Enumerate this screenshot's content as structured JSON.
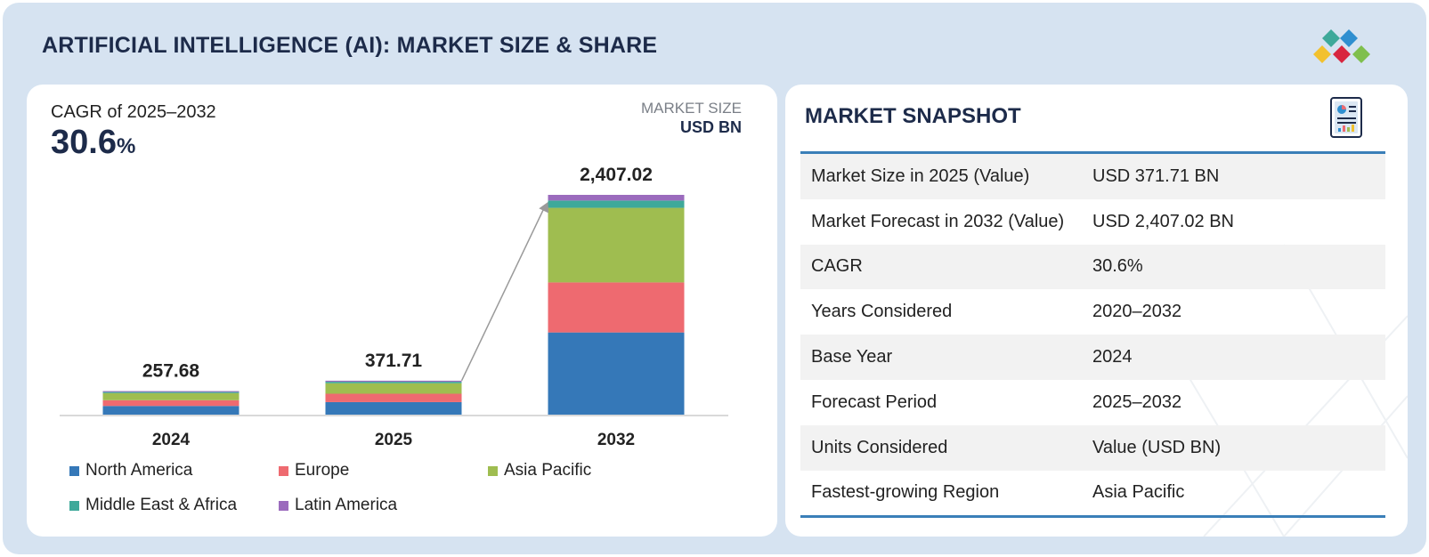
{
  "header": {
    "title": "ARTIFICIAL INTELLIGENCE (AI): MARKET SIZE & SHARE"
  },
  "chart_panel": {
    "cagr_label": "CAGR of 2025–2032",
    "cagr_value": "30.6",
    "cagr_unit": "%",
    "market_size_label": "MARKET SIZE",
    "market_size_unit": "USD BN"
  },
  "chart_data": {
    "type": "bar",
    "stacked": true,
    "categories": [
      "2024",
      "2025",
      "2032"
    ],
    "totals": [
      257.68,
      371.71,
      2407.02
    ],
    "total_labels": [
      "257.68",
      "371.71",
      "2,407.02"
    ],
    "series": [
      {
        "name": "North America",
        "color": "#3578b8",
        "values": [
          95,
          137,
          900
        ]
      },
      {
        "name": "Europe",
        "color": "#ee6a70",
        "values": [
          63,
          92,
          548
        ]
      },
      {
        "name": "Asia Pacific",
        "color": "#9fbd50",
        "values": [
          78,
          115,
          817
        ]
      },
      {
        "name": "Middle East & Africa",
        "color": "#3ea99a",
        "values": [
          12,
          16,
          80
        ]
      },
      {
        "name": "Latin America",
        "color": "#9b6bbd",
        "values": [
          9.68,
          11.71,
          62.02
        ]
      }
    ],
    "title": "",
    "xlabel": "",
    "ylabel": "",
    "ylim": [
      0,
      2407.02
    ],
    "grid": false,
    "legend_position": "bottom",
    "growth_arrow": {
      "from": "2025",
      "to": "2032"
    }
  },
  "snapshot": {
    "title": "MARKET SNAPSHOT",
    "rows": [
      {
        "key": "Market Size in 2025 (Value)",
        "value": "USD 371.71 BN"
      },
      {
        "key": "Market Forecast in 2032 (Value)",
        "value": "USD 2,407.02 BN"
      },
      {
        "key": "CAGR",
        "value": "30.6%"
      },
      {
        "key": "Years Considered",
        "value": "2020–2032"
      },
      {
        "key": "Base Year",
        "value": "2024"
      },
      {
        "key": "Forecast Period",
        "value": "2025–2032"
      },
      {
        "key": "Units Considered",
        "value": "Value (USD BN)"
      },
      {
        "key": "Fastest-growing Region",
        "value": "Asia Pacific"
      }
    ]
  },
  "colors": {
    "frame_background": "#d6e3f1",
    "title_text": "#1d2b4a",
    "table_rule": "#3a7fb8"
  },
  "icons": {
    "logo": "brand-diamonds-logo",
    "snapshot": "report-document-icon"
  }
}
